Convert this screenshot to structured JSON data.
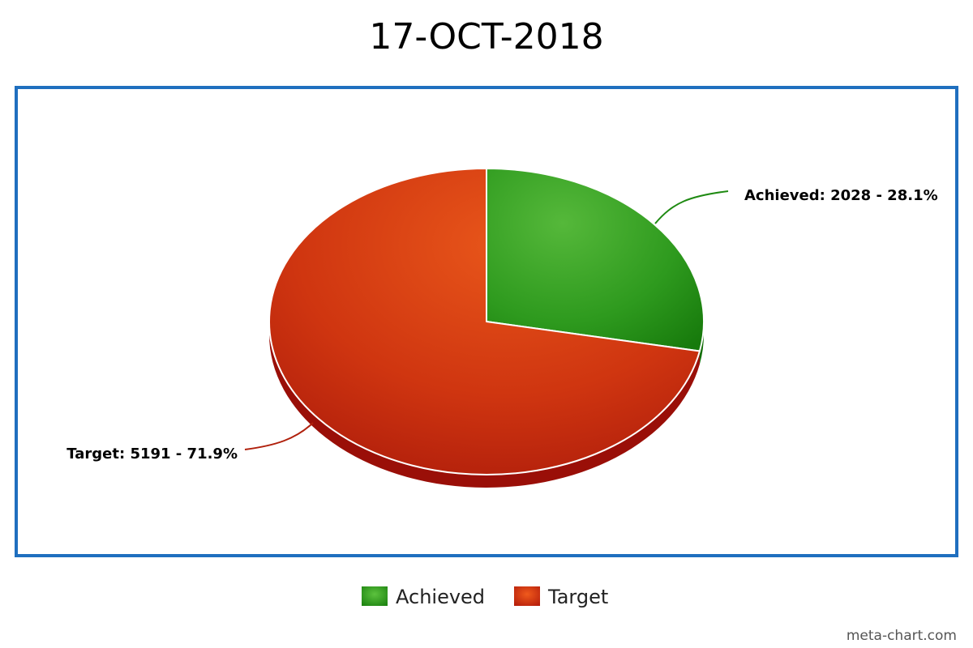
{
  "chart_data": {
    "type": "pie",
    "title": "17-OCT-2018",
    "slices": [
      {
        "name": "Achieved",
        "value": 2028,
        "percent": 28.1,
        "label": "Achieved: 2028 - 28.1%",
        "color": "#2e9a1e"
      },
      {
        "name": "Target",
        "value": 5191,
        "percent": 71.9,
        "label": "Target: 5191 - 71.9%",
        "color": "#d83a12"
      }
    ],
    "legend": {
      "position": "bottom-center",
      "entries": [
        "Achieved",
        "Target"
      ]
    },
    "style": "3d"
  },
  "frame": {
    "border_color": "#1f6fbf"
  },
  "credit": "meta-chart.com"
}
